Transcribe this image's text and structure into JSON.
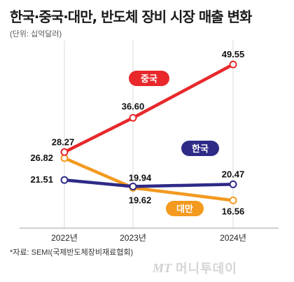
{
  "header": {
    "title": "한국·중국·대만, 반도체 장비 시장 매출 변화",
    "unit": "(단위: 십억달러)"
  },
  "footer": {
    "source": "*자료: SEMI(국제반도체장비재료협회)"
  },
  "watermark": {
    "logo": "MT",
    "text": "머니투데이"
  },
  "colors": {
    "china": "#e8282b",
    "korea": "#2e2a87",
    "taiwan": "#f39a1f",
    "axis": "#bfbfbf",
    "grid": "#d9d9d9"
  },
  "chart_data": {
    "type": "line",
    "x": [
      "2022년",
      "2023년",
      "2024년"
    ],
    "ylim": [
      10,
      55
    ],
    "grid": "vertical lines at each year",
    "series": [
      {
        "name": "중국",
        "values": [
          28.27,
          36.6,
          49.55
        ],
        "color": "#e8282b",
        "legend_style": "pill"
      },
      {
        "name": "한국",
        "values": [
          21.51,
          19.94,
          20.47
        ],
        "color": "#2e2a87",
        "legend_style": "pill"
      },
      {
        "name": "대만",
        "values": [
          26.82,
          19.62,
          16.56
        ],
        "color": "#f39a1f",
        "legend_style": "pill"
      }
    ]
  }
}
